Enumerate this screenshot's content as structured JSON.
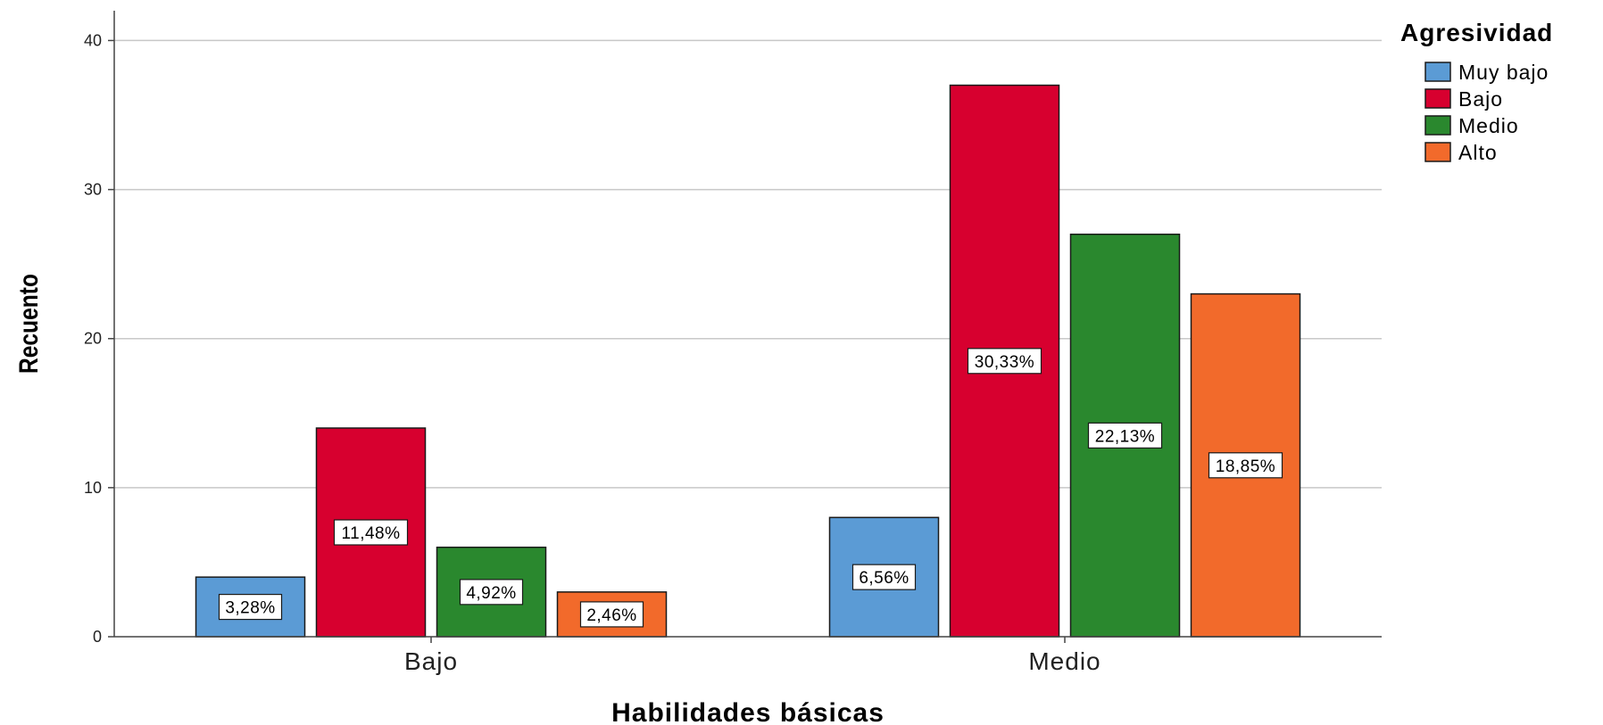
{
  "chart_data": {
    "type": "bar",
    "xlabel": "Habilidades básicas",
    "ylabel": "Recuento",
    "ylim": [
      0,
      42
    ],
    "yticks": [
      0,
      10,
      20,
      30,
      40
    ],
    "grid": "horizontal",
    "categories": [
      "Bajo",
      "Medio"
    ],
    "legend": {
      "title": "Agresividad",
      "position": "top-right"
    },
    "series": [
      {
        "name": "Muy bajo",
        "color": "#5b9bd5",
        "values": [
          4,
          8
        ],
        "labels": [
          "3,28%",
          "6,56%"
        ]
      },
      {
        "name": "Bajo",
        "color": "#d7002f",
        "values": [
          14,
          37
        ],
        "labels": [
          "11,48%",
          "30,33%"
        ]
      },
      {
        "name": "Medio",
        "color": "#2a882e",
        "values": [
          6,
          27
        ],
        "labels": [
          "4,92%",
          "22,13%"
        ]
      },
      {
        "name": "Alto",
        "color": "#f26a2b",
        "values": [
          3,
          23
        ],
        "labels": [
          "2,46%",
          "18,85%"
        ]
      }
    ]
  }
}
